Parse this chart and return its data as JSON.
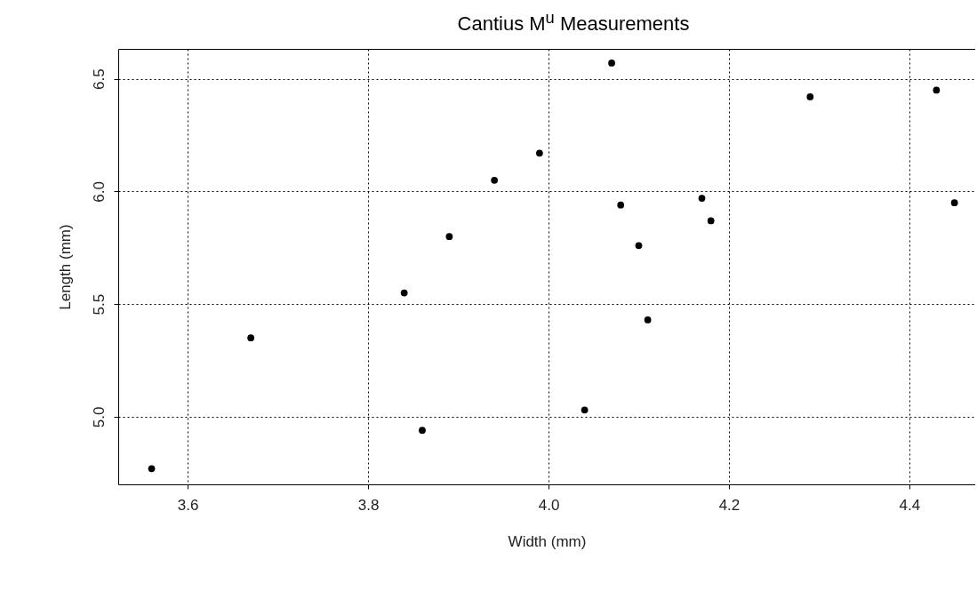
{
  "chart_data": {
    "type": "scatter",
    "title": "Cantius M$^{u}$ Measurements",
    "xlabel": "Width (mm)",
    "ylabel": "Length (mm)",
    "x": [
      3.56,
      3.67,
      3.84,
      3.86,
      3.89,
      3.94,
      3.99,
      4.04,
      4.07,
      4.08,
      4.1,
      4.11,
      4.17,
      4.18,
      4.29,
      4.43,
      4.45
    ],
    "values": [
      4.77,
      5.35,
      5.55,
      4.94,
      5.8,
      6.05,
      6.17,
      5.03,
      6.57,
      5.94,
      5.76,
      5.43,
      5.97,
      5.87,
      6.42,
      6.45,
      5.95
    ],
    "color": "#000000",
    "marker": "circle",
    "grid": true,
    "xlim": [
      3.523,
      4.473
    ],
    "xticks": [
      3.6,
      3.8,
      {
        "value": 4,
        "label": "4.0"
      },
      4.2,
      4.4
    ],
    "ylim": [
      4.7,
      6.633
    ],
    "yticks": [
      {
        "value": 5,
        "label": "5.0"
      },
      5.5,
      {
        "value": 6,
        "label": "6.0"
      },
      6.5
    ]
  }
}
